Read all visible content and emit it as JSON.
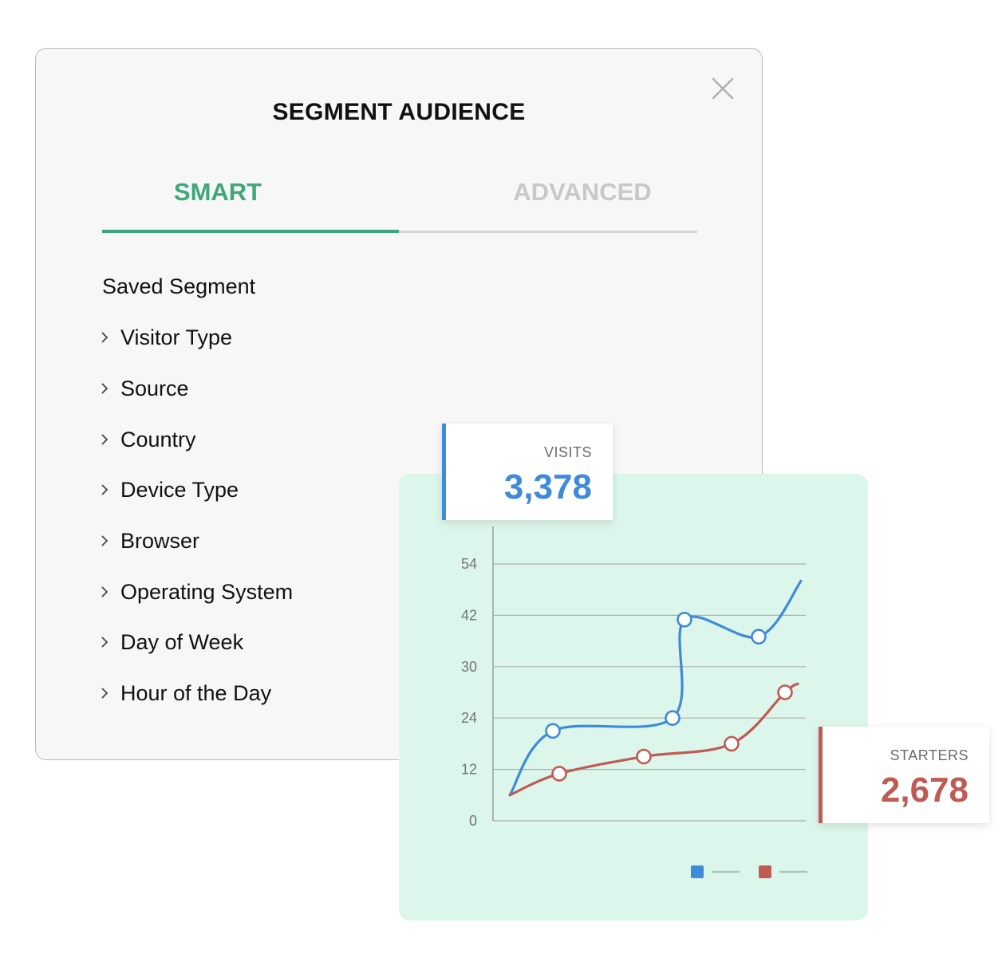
{
  "dialog": {
    "title": "SEGMENT AUDIENCE",
    "tabs": [
      {
        "label": "SMART",
        "active": true
      },
      {
        "label": "ADVANCED",
        "active": false
      }
    ],
    "section_title": "Saved Segment",
    "items": [
      {
        "label": "Visitor Type"
      },
      {
        "label": "Source"
      },
      {
        "label": "Country"
      },
      {
        "label": "Device Type"
      },
      {
        "label": "Browser"
      },
      {
        "label": "Operating System"
      },
      {
        "label": "Day of Week"
      },
      {
        "label": "Hour of the Day"
      }
    ]
  },
  "stats": {
    "visits": {
      "label": "VISITS",
      "value": "3,378"
    },
    "starters": {
      "label": "STARTERS",
      "value": "2,678"
    }
  },
  "colors": {
    "accent": "#3fa87a",
    "visits": "#3f8bd9",
    "starters": "#bf5b54",
    "card_bg": "#dcf6ec"
  },
  "chart_data": {
    "type": "line",
    "yticks": [
      0,
      12,
      24,
      30,
      42,
      54
    ],
    "series": [
      {
        "color": "#3f8bd9",
        "points": [
          [
            0,
            6
          ],
          [
            1,
            21
          ],
          [
            2,
            24
          ],
          [
            3,
            41
          ],
          [
            4,
            37
          ],
          [
            5,
            50
          ]
        ],
        "markers": [
          1,
          2,
          3,
          4
        ]
      },
      {
        "color": "#bf5b54",
        "points": [
          [
            0,
            6
          ],
          [
            1,
            11
          ],
          [
            2,
            15
          ],
          [
            3,
            18
          ],
          [
            4,
            27
          ],
          [
            5,
            28
          ]
        ],
        "markers": [
          1,
          2,
          3,
          4
        ]
      }
    ]
  }
}
